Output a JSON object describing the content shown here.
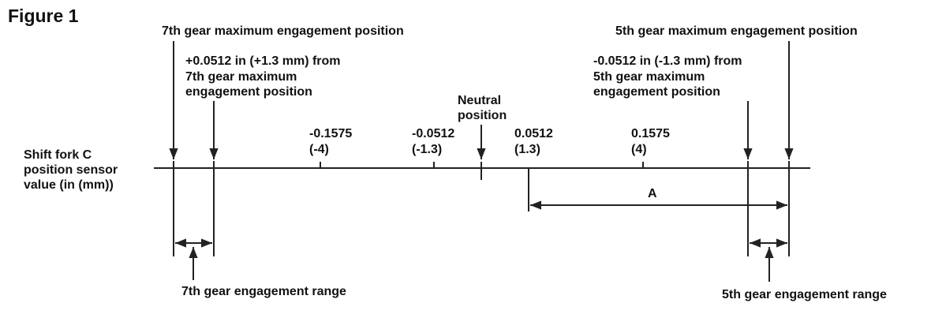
{
  "figure": {
    "title": "Figure 1",
    "axis_label": [
      "Shift fork C",
      "position sensor",
      "value (in (mm))"
    ],
    "labels": {
      "seventh_max": "7th gear maximum engagement position",
      "seventh_offset": [
        "+0.0512 in (+1.3 mm) from",
        "7th gear maximum",
        "engagement position"
      ],
      "neutral": [
        "Neutral",
        "position"
      ],
      "fifth_offset": [
        "-0.0512 in (-1.3 mm) from",
        "5th gear maximum",
        "engagement position"
      ],
      "fifth_max": "5th gear maximum engagement position",
      "range_a": "A",
      "seventh_range": "7th gear engagement range",
      "fifth_range": "5th gear engagement range"
    },
    "ticks": [
      {
        "inch": "-0.1575",
        "mm": "(-4)"
      },
      {
        "inch": "-0.0512",
        "mm": "(-1.3)"
      },
      {
        "inch": "0.0512",
        "mm": "(1.3)"
      },
      {
        "inch": "0.1575",
        "mm": "(4)"
      }
    ]
  }
}
